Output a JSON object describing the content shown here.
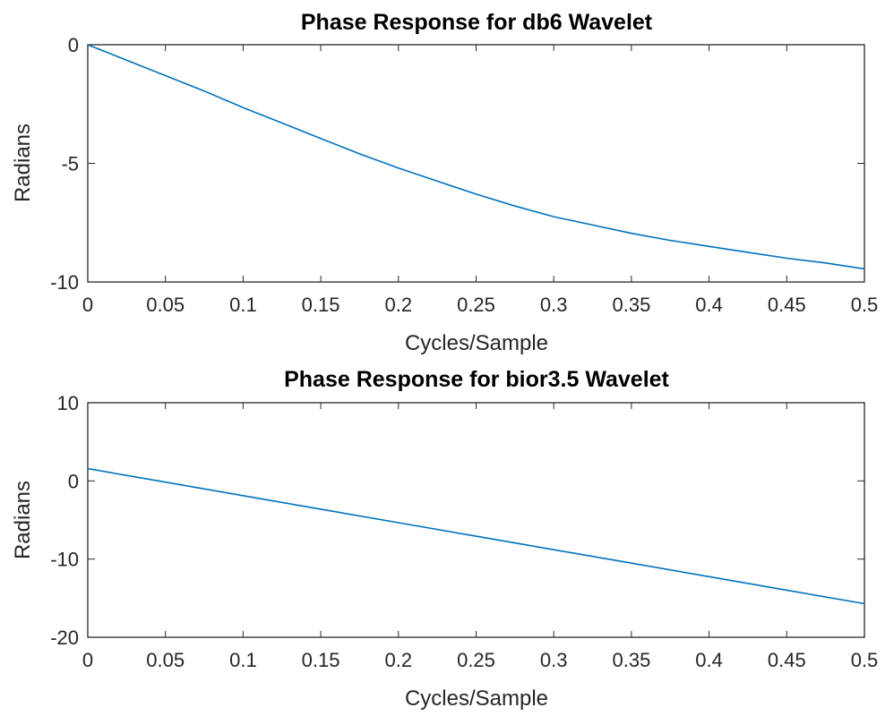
{
  "chart_data": [
    {
      "type": "line",
      "title": "Phase Response for db6 Wavelet",
      "xlabel": "Cycles/Sample",
      "ylabel": "Radians",
      "xlim": [
        0,
        0.5
      ],
      "ylim": [
        -10,
        0
      ],
      "xticks": [
        "0",
        "0.05",
        "0.1",
        "0.15",
        "0.2",
        "0.25",
        "0.3",
        "0.35",
        "0.4",
        "0.45",
        "0.5"
      ],
      "yticks": [
        "0",
        "-5",
        "-10"
      ],
      "grid": true,
      "color": "#0072BD",
      "x": [
        0,
        0.025,
        0.05,
        0.075,
        0.1,
        0.125,
        0.15,
        0.175,
        0.2,
        0.225,
        0.25,
        0.275,
        0.3,
        0.325,
        0.35,
        0.375,
        0.4,
        0.425,
        0.45,
        0.475,
        0.5
      ],
      "y": [
        0,
        -0.65,
        -1.3,
        -1.95,
        -2.65,
        -3.3,
        -3.95,
        -4.6,
        -5.2,
        -5.75,
        -6.3,
        -6.8,
        -7.25,
        -7.6,
        -7.95,
        -8.25,
        -8.5,
        -8.75,
        -9.0,
        -9.2,
        -9.45
      ]
    },
    {
      "type": "line",
      "title": "Phase Response for bior3.5 Wavelet",
      "xlabel": "Cycles/Sample",
      "ylabel": "Radians",
      "xlim": [
        0,
        0.5
      ],
      "ylim": [
        -20,
        10
      ],
      "xticks": [
        "0",
        "0.05",
        "0.1",
        "0.15",
        "0.2",
        "0.25",
        "0.3",
        "0.35",
        "0.4",
        "0.45",
        "0.5"
      ],
      "yticks": [
        "10",
        "0",
        "-10",
        "-20"
      ],
      "grid": true,
      "color": "#0072BD",
      "x": [
        0,
        0.05,
        0.1,
        0.15,
        0.2,
        0.25,
        0.3,
        0.35,
        0.4,
        0.45,
        0.5
      ],
      "y": [
        1.57,
        -0.16,
        -1.88,
        -3.61,
        -5.34,
        -7.07,
        -8.8,
        -10.52,
        -12.25,
        -13.98,
        -15.71
      ]
    }
  ]
}
